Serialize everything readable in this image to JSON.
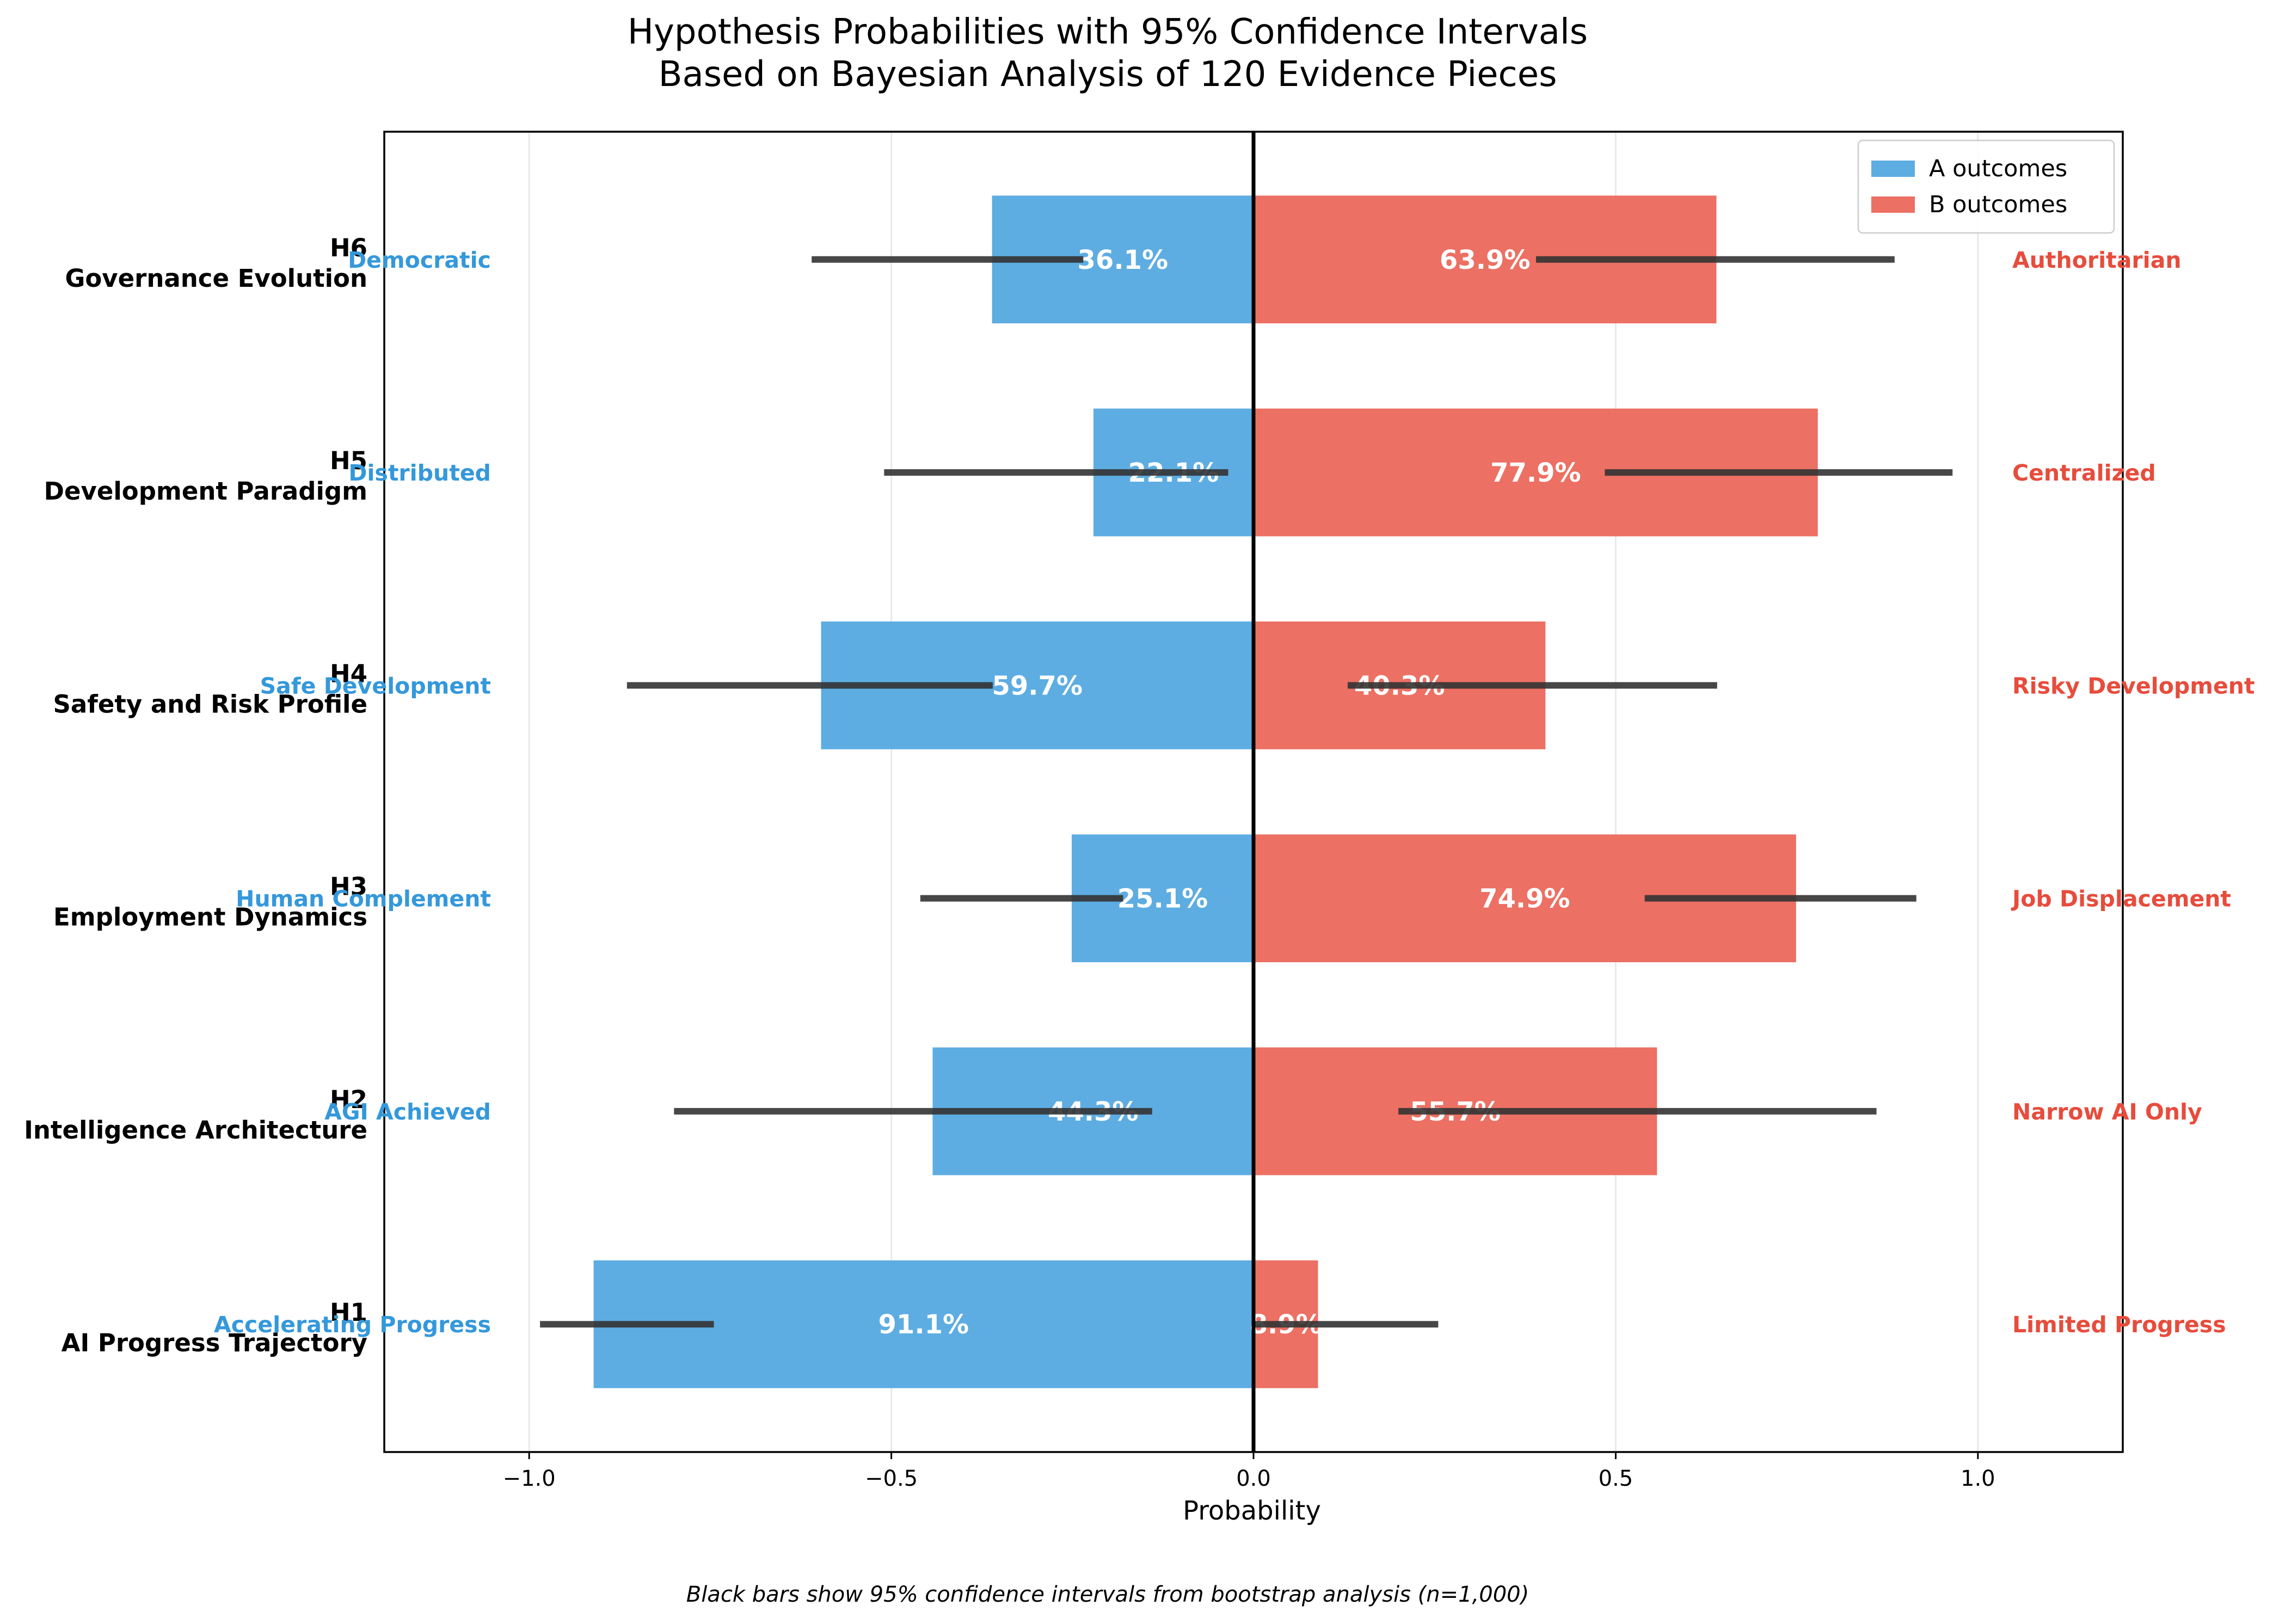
{
  "chart_data": {
    "type": "bar",
    "orientation": "horizontal-diverging",
    "title_lines": [
      "Hypothesis Probabilities with 95% Confidence Intervals",
      "Based on Bayesian Analysis of 120 Evidence Pieces"
    ],
    "xlabel": "Probability",
    "xlim": [
      -1.2,
      1.2
    ],
    "xticks": [
      -1.0,
      -0.5,
      0.0,
      0.5,
      1.0
    ],
    "xtick_labels": [
      "−1.0",
      "−0.5",
      "0.0",
      "0.5",
      "1.0"
    ],
    "grid": "vertical",
    "legend": {
      "position": "top-right",
      "entries": [
        {
          "label": "A outcomes",
          "color": "#5DADE2"
        },
        {
          "label": "B outcomes",
          "color": "#EC7063"
        }
      ]
    },
    "colors": {
      "a_bar": "#5DADE2",
      "b_bar": "#EC7063",
      "a_text": "#3498DB",
      "b_text": "#E74C3C",
      "error_bar": "#333333"
    },
    "hypotheses": [
      {
        "id": "H1",
        "name": "AI Progress Trajectory",
        "a_outcome": "Accelerating Progress",
        "b_outcome": "Limited Progress",
        "a_value": 0.911,
        "b_value": 0.089,
        "a_label": "91.1%",
        "b_label": "8.9%",
        "a_ci": [
          -0.985,
          -0.745
        ],
        "b_ci": [
          0.0,
          0.255
        ]
      },
      {
        "id": "H2",
        "name": "Intelligence Architecture",
        "a_outcome": "AGI Achieved",
        "b_outcome": "Narrow AI Only",
        "a_value": 0.443,
        "b_value": 0.557,
        "a_label": "44.3%",
        "b_label": "55.7%",
        "a_ci": [
          -0.8,
          -0.14
        ],
        "b_ci": [
          0.2,
          0.86
        ]
      },
      {
        "id": "H3",
        "name": "Employment Dynamics",
        "a_outcome": "Human Complement",
        "b_outcome": "Job Displacement",
        "a_value": 0.251,
        "b_value": 0.749,
        "a_label": "25.1%",
        "b_label": "74.9%",
        "a_ci": [
          -0.46,
          -0.18
        ],
        "b_ci": [
          0.54,
          0.915
        ]
      },
      {
        "id": "H4",
        "name": "Safety and Risk Profile",
        "a_outcome": "Safe Development",
        "b_outcome": "Risky Development",
        "a_value": 0.597,
        "b_value": 0.403,
        "a_label": "59.7%",
        "b_label": "40.3%",
        "a_ci": [
          -0.865,
          -0.36
        ],
        "b_ci": [
          0.13,
          0.64
        ]
      },
      {
        "id": "H5",
        "name": "Development Paradigm",
        "a_outcome": "Distributed",
        "b_outcome": "Centralized",
        "a_value": 0.221,
        "b_value": 0.779,
        "a_label": "22.1%",
        "b_label": "77.9%",
        "a_ci": [
          -0.51,
          -0.035
        ],
        "b_ci": [
          0.485,
          0.965
        ]
      },
      {
        "id": "H6",
        "name": "Governance Evolution",
        "a_outcome": "Democratic",
        "b_outcome": "Authoritarian",
        "a_value": 0.361,
        "b_value": 0.639,
        "a_label": "36.1%",
        "b_label": "63.9%",
        "a_ci": [
          -0.61,
          -0.235
        ],
        "b_ci": [
          0.39,
          0.885
        ]
      }
    ],
    "footnote": "Black bars show 95% confidence intervals from bootstrap analysis (n=1,000)"
  }
}
